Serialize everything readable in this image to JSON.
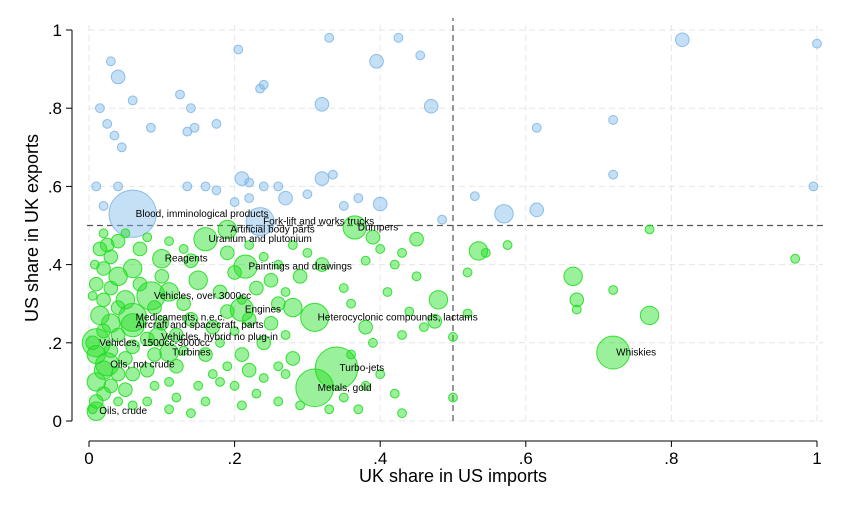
{
  "chart_data": {
    "type": "scatter",
    "title": "",
    "xlabel": "UK share in US imports",
    "ylabel": "US share in UK exports",
    "xlim": [
      0,
      1
    ],
    "ylim": [
      0,
      1
    ],
    "x_ticks": [
      {
        "v": 0,
        "label": "0"
      },
      {
        "v": 0.2,
        "label": ".2"
      },
      {
        "v": 0.4,
        "label": ".4"
      },
      {
        "v": 0.6,
        "label": ".6"
      },
      {
        "v": 0.8,
        "label": ".8"
      },
      {
        "v": 1,
        "label": "1"
      }
    ],
    "y_ticks": [
      {
        "v": 0,
        "label": "0"
      },
      {
        "v": 0.2,
        "label": ".2"
      },
      {
        "v": 0.4,
        "label": ".4"
      },
      {
        "v": 0.6,
        "label": ".6"
      },
      {
        "v": 0.8,
        "label": ".8"
      },
      {
        "v": 1,
        "label": "1"
      }
    ],
    "grid": true,
    "reference_lines": {
      "x": 0.5,
      "y": 0.5
    },
    "colors": {
      "above_reference": "#7fb8e8",
      "below_reference": "#22dd22"
    },
    "labeled_points": [
      {
        "label": "Blood, imminological products",
        "x": 0.06,
        "y": 0.53,
        "size": 9
      },
      {
        "label": "Fork-lift and works trucks",
        "x": 0.235,
        "y": 0.51,
        "size": 5
      },
      {
        "label": "Dumpers",
        "x": 0.365,
        "y": 0.495,
        "size": 4
      },
      {
        "label": "Artificial body parts",
        "x": 0.19,
        "y": 0.49,
        "size": 3
      },
      {
        "label": "Uranium and plutonium",
        "x": 0.16,
        "y": 0.465,
        "size": 4
      },
      {
        "label": "Reagents",
        "x": 0.1,
        "y": 0.415,
        "size": 3
      },
      {
        "label": "Paintings and drawings",
        "x": 0.215,
        "y": 0.395,
        "size": 4
      },
      {
        "label": "Vehicles, over 3000cc",
        "x": 0.085,
        "y": 0.32,
        "size": 5
      },
      {
        "label": "Engines",
        "x": 0.21,
        "y": 0.285,
        "size": 4
      },
      {
        "label": "Heterocyclonic compounds, lactams",
        "x": 0.31,
        "y": 0.265,
        "size": 5
      },
      {
        "label": "Medicaments, n.e.c.",
        "x": 0.06,
        "y": 0.265,
        "size": 5
      },
      {
        "label": "Aircraft and spacecraft, parts",
        "x": 0.06,
        "y": 0.245,
        "size": 4
      },
      {
        "label": "Vehicles, hybrid no plug-in",
        "x": 0.095,
        "y": 0.215,
        "size": 3
      },
      {
        "label": "Vehicles, 1500cc-3000cc",
        "x": 0.01,
        "y": 0.2,
        "size": 5
      },
      {
        "label": "Turbines",
        "x": 0.11,
        "y": 0.175,
        "size": 3
      },
      {
        "label": "Oils, not crude",
        "x": 0.025,
        "y": 0.145,
        "size": 4
      },
      {
        "label": "Turbo-jets",
        "x": 0.34,
        "y": 0.135,
        "size": 8
      },
      {
        "label": "Whiskies",
        "x": 0.72,
        "y": 0.175,
        "size": 6
      },
      {
        "label": "Metals, gold",
        "x": 0.31,
        "y": 0.085,
        "size": 7
      },
      {
        "label": "Oils, crude",
        "x": 0.01,
        "y": 0.025,
        "size": 3
      }
    ],
    "unlabeled_points": [
      {
        "x": 0.04,
        "y": 0.88,
        "size": 2
      },
      {
        "x": 0.03,
        "y": 0.92,
        "size": 1
      },
      {
        "x": 0.015,
        "y": 0.8,
        "size": 1
      },
      {
        "x": 0.06,
        "y": 0.82,
        "size": 1
      },
      {
        "x": 0.035,
        "y": 0.73,
        "size": 1
      },
      {
        "x": 0.045,
        "y": 0.7,
        "size": 1
      },
      {
        "x": 0.025,
        "y": 0.76,
        "size": 1
      },
      {
        "x": 0.085,
        "y": 0.75,
        "size": 1
      },
      {
        "x": 0.135,
        "y": 0.74,
        "size": 1
      },
      {
        "x": 0.145,
        "y": 0.75,
        "size": 1
      },
      {
        "x": 0.14,
        "y": 0.8,
        "size": 1
      },
      {
        "x": 0.125,
        "y": 0.835,
        "size": 1
      },
      {
        "x": 0.175,
        "y": 0.76,
        "size": 1
      },
      {
        "x": 0.205,
        "y": 0.95,
        "size": 1
      },
      {
        "x": 0.24,
        "y": 0.86,
        "size": 1
      },
      {
        "x": 0.235,
        "y": 0.85,
        "size": 1
      },
      {
        "x": 0.32,
        "y": 0.81,
        "size": 2
      },
      {
        "x": 0.33,
        "y": 0.98,
        "size": 1
      },
      {
        "x": 0.395,
        "y": 0.92,
        "size": 2
      },
      {
        "x": 0.425,
        "y": 0.98,
        "size": 1
      },
      {
        "x": 0.47,
        "y": 0.805,
        "size": 2
      },
      {
        "x": 0.455,
        "y": 0.935,
        "size": 1
      },
      {
        "x": 0.615,
        "y": 0.75,
        "size": 1
      },
      {
        "x": 0.72,
        "y": 0.77,
        "size": 1
      },
      {
        "x": 0.815,
        "y": 0.975,
        "size": 2
      },
      {
        "x": 1.0,
        "y": 0.965,
        "size": 1
      },
      {
        "x": 0.01,
        "y": 0.6,
        "size": 1
      },
      {
        "x": 0.04,
        "y": 0.6,
        "size": 1
      },
      {
        "x": 0.02,
        "y": 0.55,
        "size": 1
      },
      {
        "x": 0.135,
        "y": 0.6,
        "size": 1
      },
      {
        "x": 0.16,
        "y": 0.6,
        "size": 1
      },
      {
        "x": 0.175,
        "y": 0.59,
        "size": 1
      },
      {
        "x": 0.21,
        "y": 0.62,
        "size": 2
      },
      {
        "x": 0.22,
        "y": 0.61,
        "size": 1
      },
      {
        "x": 0.24,
        "y": 0.6,
        "size": 1
      },
      {
        "x": 0.26,
        "y": 0.6,
        "size": 1
      },
      {
        "x": 0.32,
        "y": 0.62,
        "size": 2
      },
      {
        "x": 0.335,
        "y": 0.63,
        "size": 1
      },
      {
        "x": 0.27,
        "y": 0.57,
        "size": 2
      },
      {
        "x": 0.2,
        "y": 0.56,
        "size": 1
      },
      {
        "x": 0.22,
        "y": 0.57,
        "size": 1
      },
      {
        "x": 0.3,
        "y": 0.58,
        "size": 1
      },
      {
        "x": 0.35,
        "y": 0.55,
        "size": 1
      },
      {
        "x": 0.37,
        "y": 0.57,
        "size": 1
      },
      {
        "x": 0.4,
        "y": 0.555,
        "size": 2
      },
      {
        "x": 0.485,
        "y": 0.515,
        "size": 1
      },
      {
        "x": 0.53,
        "y": 0.575,
        "size": 1
      },
      {
        "x": 0.57,
        "y": 0.53,
        "size": 3
      },
      {
        "x": 0.615,
        "y": 0.54,
        "size": 2
      },
      {
        "x": 0.72,
        "y": 0.63,
        "size": 1
      },
      {
        "x": 0.995,
        "y": 0.6,
        "size": 1
      },
      {
        "x": 0.77,
        "y": 0.49,
        "size": 1
      },
      {
        "x": 0.535,
        "y": 0.435,
        "size": 3
      },
      {
        "x": 0.575,
        "y": 0.45,
        "size": 1
      },
      {
        "x": 0.545,
        "y": 0.43,
        "size": 1
      },
      {
        "x": 0.665,
        "y": 0.37,
        "size": 3
      },
      {
        "x": 0.67,
        "y": 0.31,
        "size": 2
      },
      {
        "x": 0.67,
        "y": 0.285,
        "size": 1
      },
      {
        "x": 0.77,
        "y": 0.27,
        "size": 3
      },
      {
        "x": 0.72,
        "y": 0.335,
        "size": 1
      },
      {
        "x": 0.97,
        "y": 0.415,
        "size": 1
      },
      {
        "x": 0.52,
        "y": 0.38,
        "size": 1
      },
      {
        "x": 0.5,
        "y": 0.215,
        "size": 1
      },
      {
        "x": 0.52,
        "y": 0.275,
        "size": 1
      },
      {
        "x": 0.5,
        "y": 0.06,
        "size": 1
      },
      {
        "x": 0.48,
        "y": 0.31,
        "size": 3
      },
      {
        "x": 0.475,
        "y": 0.255,
        "size": 2
      },
      {
        "x": 0.45,
        "y": 0.465,
        "size": 2
      },
      {
        "x": 0.43,
        "y": 0.43,
        "size": 1
      },
      {
        "x": 0.39,
        "y": 0.47,
        "size": 2
      },
      {
        "x": 0.4,
        "y": 0.44,
        "size": 1
      },
      {
        "x": 0.38,
        "y": 0.41,
        "size": 1
      },
      {
        "x": 0.42,
        "y": 0.4,
        "size": 1
      },
      {
        "x": 0.45,
        "y": 0.37,
        "size": 1
      },
      {
        "x": 0.41,
        "y": 0.33,
        "size": 1
      },
      {
        "x": 0.44,
        "y": 0.28,
        "size": 1
      },
      {
        "x": 0.46,
        "y": 0.24,
        "size": 1
      },
      {
        "x": 0.43,
        "y": 0.22,
        "size": 1
      },
      {
        "x": 0.38,
        "y": 0.24,
        "size": 2
      },
      {
        "x": 0.39,
        "y": 0.2,
        "size": 1
      },
      {
        "x": 0.36,
        "y": 0.3,
        "size": 1
      },
      {
        "x": 0.35,
        "y": 0.34,
        "size": 1
      },
      {
        "x": 0.32,
        "y": 0.4,
        "size": 2
      },
      {
        "x": 0.3,
        "y": 0.43,
        "size": 1
      },
      {
        "x": 0.28,
        "y": 0.45,
        "size": 1
      },
      {
        "x": 0.29,
        "y": 0.37,
        "size": 2
      },
      {
        "x": 0.27,
        "y": 0.33,
        "size": 1
      },
      {
        "x": 0.25,
        "y": 0.36,
        "size": 2
      },
      {
        "x": 0.26,
        "y": 0.3,
        "size": 2
      },
      {
        "x": 0.28,
        "y": 0.29,
        "size": 3
      },
      {
        "x": 0.25,
        "y": 0.25,
        "size": 2
      },
      {
        "x": 0.27,
        "y": 0.22,
        "size": 1
      },
      {
        "x": 0.24,
        "y": 0.2,
        "size": 2
      },
      {
        "x": 0.28,
        "y": 0.16,
        "size": 2
      },
      {
        "x": 0.26,
        "y": 0.14,
        "size": 1
      },
      {
        "x": 0.27,
        "y": 0.12,
        "size": 1
      },
      {
        "x": 0.24,
        "y": 0.11,
        "size": 1
      },
      {
        "x": 0.22,
        "y": 0.13,
        "size": 2
      },
      {
        "x": 0.2,
        "y": 0.09,
        "size": 1
      },
      {
        "x": 0.23,
        "y": 0.07,
        "size": 1
      },
      {
        "x": 0.26,
        "y": 0.05,
        "size": 1
      },
      {
        "x": 0.29,
        "y": 0.04,
        "size": 1
      },
      {
        "x": 0.35,
        "y": 0.06,
        "size": 1
      },
      {
        "x": 0.38,
        "y": 0.09,
        "size": 1
      },
      {
        "x": 0.4,
        "y": 0.12,
        "size": 1
      },
      {
        "x": 0.36,
        "y": 0.17,
        "size": 1
      },
      {
        "x": 0.33,
        "y": 0.03,
        "size": 1
      },
      {
        "x": 0.43,
        "y": 0.02,
        "size": 1
      },
      {
        "x": 0.42,
        "y": 0.07,
        "size": 1
      },
      {
        "x": 0.37,
        "y": 0.03,
        "size": 1
      },
      {
        "x": 0.19,
        "y": 0.43,
        "size": 2
      },
      {
        "x": 0.2,
        "y": 0.38,
        "size": 2
      },
      {
        "x": 0.18,
        "y": 0.33,
        "size": 2
      },
      {
        "x": 0.19,
        "y": 0.28,
        "size": 2
      },
      {
        "x": 0.17,
        "y": 0.24,
        "size": 2
      },
      {
        "x": 0.18,
        "y": 0.2,
        "size": 1
      },
      {
        "x": 0.16,
        "y": 0.17,
        "size": 2
      },
      {
        "x": 0.17,
        "y": 0.12,
        "size": 1
      },
      {
        "x": 0.15,
        "y": 0.09,
        "size": 1
      },
      {
        "x": 0.16,
        "y": 0.05,
        "size": 1
      },
      {
        "x": 0.14,
        "y": 0.41,
        "size": 2
      },
      {
        "x": 0.15,
        "y": 0.36,
        "size": 3
      },
      {
        "x": 0.13,
        "y": 0.3,
        "size": 2
      },
      {
        "x": 0.14,
        "y": 0.26,
        "size": 2
      },
      {
        "x": 0.12,
        "y": 0.22,
        "size": 2
      },
      {
        "x": 0.13,
        "y": 0.18,
        "size": 1
      },
      {
        "x": 0.12,
        "y": 0.14,
        "size": 2
      },
      {
        "x": 0.11,
        "y": 0.1,
        "size": 1
      },
      {
        "x": 0.12,
        "y": 0.06,
        "size": 1
      },
      {
        "x": 0.11,
        "y": 0.03,
        "size": 1
      },
      {
        "x": 0.1,
        "y": 0.37,
        "size": 2
      },
      {
        "x": 0.11,
        "y": 0.33,
        "size": 3
      },
      {
        "x": 0.09,
        "y": 0.29,
        "size": 2
      },
      {
        "x": 0.1,
        "y": 0.25,
        "size": 2
      },
      {
        "x": 0.08,
        "y": 0.21,
        "size": 2
      },
      {
        "x": 0.09,
        "y": 0.17,
        "size": 2
      },
      {
        "x": 0.08,
        "y": 0.13,
        "size": 2
      },
      {
        "x": 0.09,
        "y": 0.09,
        "size": 1
      },
      {
        "x": 0.08,
        "y": 0.05,
        "size": 1
      },
      {
        "x": 0.07,
        "y": 0.44,
        "size": 2
      },
      {
        "x": 0.06,
        "y": 0.39,
        "size": 3
      },
      {
        "x": 0.07,
        "y": 0.35,
        "size": 2
      },
      {
        "x": 0.05,
        "y": 0.31,
        "size": 3
      },
      {
        "x": 0.06,
        "y": 0.19,
        "size": 2
      },
      {
        "x": 0.05,
        "y": 0.16,
        "size": 2
      },
      {
        "x": 0.06,
        "y": 0.12,
        "size": 2
      },
      {
        "x": 0.05,
        "y": 0.08,
        "size": 2
      },
      {
        "x": 0.06,
        "y": 0.04,
        "size": 1
      },
      {
        "x": 0.04,
        "y": 0.46,
        "size": 2
      },
      {
        "x": 0.03,
        "y": 0.42,
        "size": 2
      },
      {
        "x": 0.04,
        "y": 0.37,
        "size": 3
      },
      {
        "x": 0.03,
        "y": 0.34,
        "size": 2
      },
      {
        "x": 0.04,
        "y": 0.29,
        "size": 2
      },
      {
        "x": 0.03,
        "y": 0.25,
        "size": 3
      },
      {
        "x": 0.04,
        "y": 0.22,
        "size": 2
      },
      {
        "x": 0.03,
        "y": 0.18,
        "size": 2
      },
      {
        "x": 0.04,
        "y": 0.12,
        "size": 2
      },
      {
        "x": 0.03,
        "y": 0.09,
        "size": 2
      },
      {
        "x": 0.04,
        "y": 0.05,
        "size": 1
      },
      {
        "x": 0.02,
        "y": 0.48,
        "size": 1
      },
      {
        "x": 0.015,
        "y": 0.44,
        "size": 2
      },
      {
        "x": 0.02,
        "y": 0.39,
        "size": 2
      },
      {
        "x": 0.01,
        "y": 0.35,
        "size": 2
      },
      {
        "x": 0.02,
        "y": 0.31,
        "size": 2
      },
      {
        "x": 0.015,
        "y": 0.27,
        "size": 3
      },
      {
        "x": 0.02,
        "y": 0.23,
        "size": 2
      },
      {
        "x": 0.01,
        "y": 0.17,
        "size": 3
      },
      {
        "x": 0.02,
        "y": 0.13,
        "size": 3
      },
      {
        "x": 0.01,
        "y": 0.1,
        "size": 3
      },
      {
        "x": 0.02,
        "y": 0.07,
        "size": 2
      },
      {
        "x": 0.01,
        "y": 0.05,
        "size": 2
      },
      {
        "x": 0.005,
        "y": 0.03,
        "size": 1
      },
      {
        "x": 0.005,
        "y": 0.2,
        "size": 2
      },
      {
        "x": 0.005,
        "y": 0.32,
        "size": 1
      },
      {
        "x": 0.008,
        "y": 0.4,
        "size": 1
      },
      {
        "x": 0.025,
        "y": 0.45,
        "size": 2
      },
      {
        "x": 0.05,
        "y": 0.48,
        "size": 1
      },
      {
        "x": 0.08,
        "y": 0.47,
        "size": 1
      },
      {
        "x": 0.11,
        "y": 0.46,
        "size": 1
      },
      {
        "x": 0.13,
        "y": 0.44,
        "size": 1
      },
      {
        "x": 0.22,
        "y": 0.45,
        "size": 1
      },
      {
        "x": 0.24,
        "y": 0.42,
        "size": 1
      },
      {
        "x": 0.26,
        "y": 0.4,
        "size": 1
      },
      {
        "x": 0.23,
        "y": 0.34,
        "size": 2
      },
      {
        "x": 0.21,
        "y": 0.31,
        "size": 1
      },
      {
        "x": 0.22,
        "y": 0.26,
        "size": 2
      },
      {
        "x": 0.2,
        "y": 0.23,
        "size": 1
      },
      {
        "x": 0.21,
        "y": 0.17,
        "size": 2
      },
      {
        "x": 0.19,
        "y": 0.14,
        "size": 1
      },
      {
        "x": 0.18,
        "y": 0.1,
        "size": 1
      },
      {
        "x": 0.21,
        "y": 0.04,
        "size": 1
      },
      {
        "x": 0.14,
        "y": 0.02,
        "size": 1
      }
    ]
  }
}
